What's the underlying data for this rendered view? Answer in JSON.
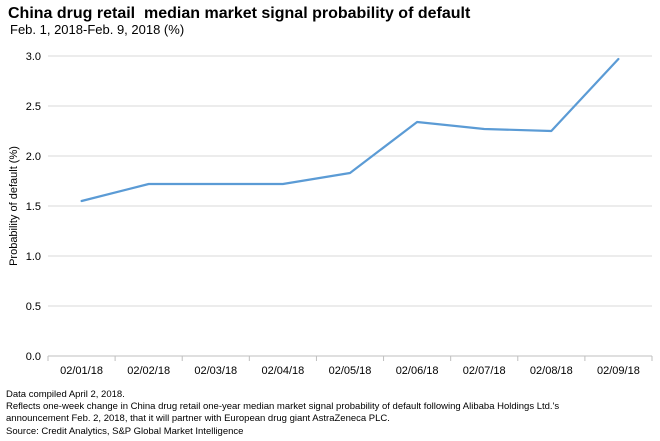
{
  "chart_data": {
    "type": "line",
    "title": "China drug retail  median market signal probability of default",
    "subtitle": " Feb. 1, 2018-Feb. 9, 2018 (%)",
    "xlabel": "",
    "ylabel": "Probability of default (%)",
    "categories": [
      "02/01/18",
      "02/02/18",
      "02/03/18",
      "02/04/18",
      "02/05/18",
      "02/06/18",
      "02/07/18",
      "02/08/18",
      "02/09/18"
    ],
    "series": [
      {
        "values": [
          1.55,
          1.72,
          1.72,
          1.72,
          1.83,
          2.34,
          2.27,
          2.25,
          2.97
        ]
      }
    ],
    "yticks": [
      "0.0",
      "0.5",
      "1.0",
      "1.5",
      "2.0",
      "2.5",
      "3.0"
    ],
    "ylim": [
      0,
      3.0
    ],
    "grid": true,
    "line_color": "#5b9bd5"
  },
  "notes": {
    "line1": "Data compiled April 2, 2018.",
    "line2": "Reflects one-week change in China drug retail one-year median market signal probability of default following Alibaba Holdings Ltd.'s",
    "line3": "announcement Feb. 2, 2018, that it will partner with European drug giant AstraZeneca PLC.",
    "line4": "Source: Credit Analytics, S&P Global Market Intelligence"
  }
}
